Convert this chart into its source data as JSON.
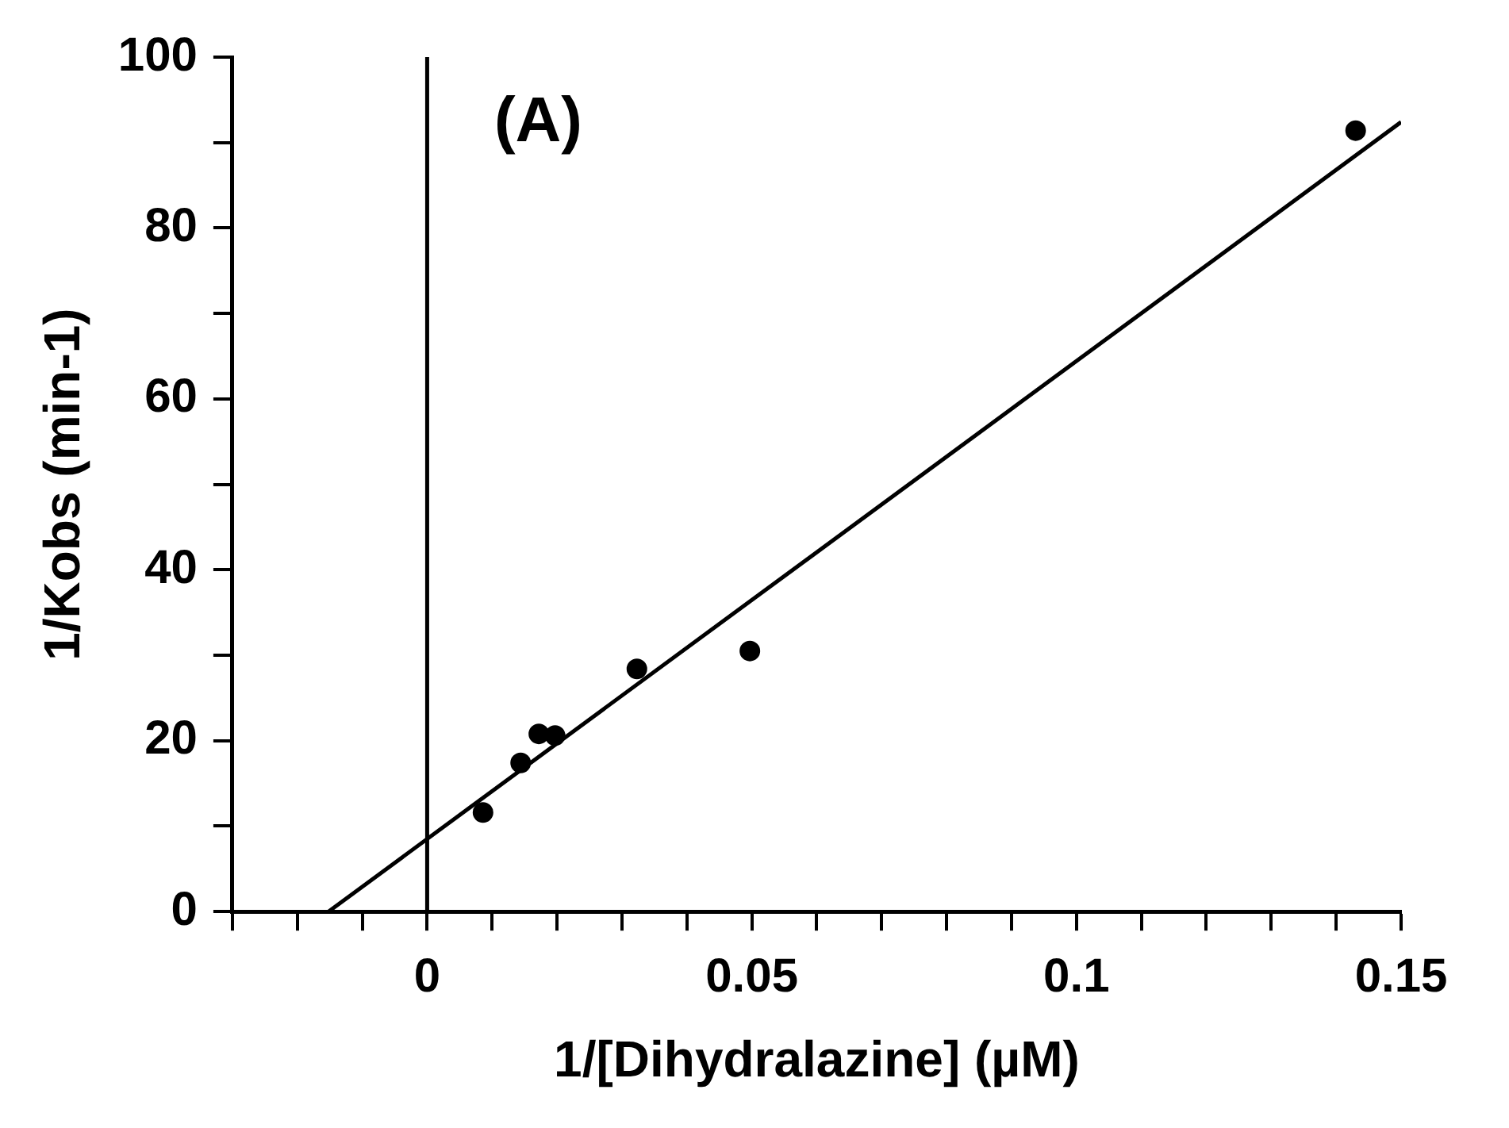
{
  "chart_data": {
    "type": "scatter",
    "xlabel": "1/[Dihydralazine] (µM)",
    "ylabel": "1/Kobs (min-1)",
    "annotations": [
      "(A)"
    ],
    "series": [
      {
        "type": "scatter",
        "color": "#000000",
        "x": [
          0.0086,
          0.0144,
          0.0172,
          0.0197,
          0.0323,
          0.0497,
          0.143
        ],
        "values": [
          11.6,
          17.4,
          20.8,
          20.6,
          28.4,
          30.5,
          91.4
        ]
      },
      {
        "type": "line",
        "color": "#000000",
        "x": [
          -0.0152,
          0.15
        ],
        "values": [
          0,
          92.4
        ],
        "marker": "none"
      }
    ],
    "marker": "circle",
    "ref_lines": [
      {
        "axis": "x",
        "value": 0,
        "color": "#000000"
      }
    ],
    "xlim": [
      -0.03,
      0.15
    ],
    "ylim": [
      0,
      100
    ],
    "xticks": [
      {
        "value": -0.03,
        "label": null
      },
      {
        "value": -0.02,
        "label": null
      },
      {
        "value": -0.01,
        "label": null
      },
      0,
      {
        "value": 0.01,
        "label": null
      },
      {
        "value": 0.02,
        "label": null
      },
      {
        "value": 0.03,
        "label": null
      },
      {
        "value": 0.04,
        "label": null
      },
      0.05,
      {
        "value": 0.06,
        "label": null
      },
      {
        "value": 0.07,
        "label": null
      },
      {
        "value": 0.08,
        "label": null
      },
      {
        "value": 0.09,
        "label": null
      },
      0.1,
      {
        "value": 0.11,
        "label": null
      },
      {
        "value": 0.12,
        "label": null
      },
      {
        "value": 0.13,
        "label": null
      },
      {
        "value": 0.14,
        "label": null
      },
      0.15
    ],
    "yticks": [
      0,
      {
        "value": 10,
        "label": null
      },
      20,
      {
        "value": 30,
        "label": null
      },
      40,
      {
        "value": 50,
        "label": null
      },
      60,
      {
        "value": 70,
        "label": null
      },
      80,
      {
        "value": 90,
        "label": null
      },
      100
    ],
    "grid": false,
    "legend": false
  }
}
